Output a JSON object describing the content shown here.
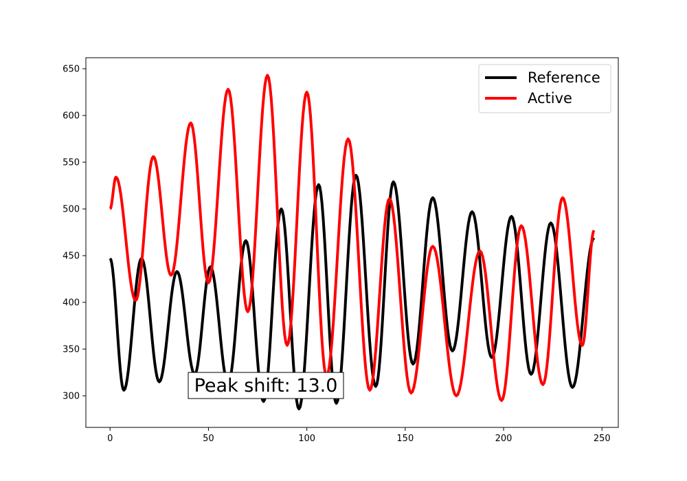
{
  "chart_data": {
    "type": "line",
    "xlim": [
      -12.3,
      258.3
    ],
    "ylim": [
      266.2,
      661.8
    ],
    "xticks": [
      0,
      50,
      100,
      150,
      200,
      250
    ],
    "yticks": [
      300,
      350,
      400,
      450,
      500,
      550,
      600,
      650
    ],
    "grid": false,
    "legend_position": "top-right",
    "annotation": "Peak shift: 13.0",
    "series": [
      {
        "name": "Reference",
        "color": "#000000",
        "points": [
          [
            0,
            447
          ],
          [
            7,
            306
          ],
          [
            16,
            447
          ],
          [
            25,
            315
          ],
          [
            34,
            433
          ],
          [
            43,
            323
          ],
          [
            51,
            438
          ],
          [
            60,
            313
          ],
          [
            69,
            466
          ],
          [
            78,
            294
          ],
          [
            87,
            500
          ],
          [
            96,
            286
          ],
          [
            106,
            526
          ],
          [
            115,
            292
          ],
          [
            125,
            536
          ],
          [
            135,
            310
          ],
          [
            144,
            529
          ],
          [
            154,
            334
          ],
          [
            164,
            512
          ],
          [
            174,
            348
          ],
          [
            184,
            497
          ],
          [
            194,
            341
          ],
          [
            204,
            492
          ],
          [
            214,
            323
          ],
          [
            224,
            485
          ],
          [
            235,
            309
          ],
          [
            246,
            469
          ]
        ]
      },
      {
        "name": "Active",
        "color": "#ff0000",
        "points": [
          [
            0,
            500
          ],
          [
            3,
            534
          ],
          [
            13,
            402
          ],
          [
            22,
            556
          ],
          [
            31,
            429
          ],
          [
            41,
            592
          ],
          [
            50,
            421
          ],
          [
            60,
            628
          ],
          [
            70,
            390
          ],
          [
            80,
            643
          ],
          [
            90,
            354
          ],
          [
            100,
            625
          ],
          [
            110,
            321
          ],
          [
            121,
            575
          ],
          [
            132,
            306
          ],
          [
            142,
            511
          ],
          [
            153,
            303
          ],
          [
            164,
            460
          ],
          [
            176,
            300
          ],
          [
            188,
            455
          ],
          [
            199,
            295
          ],
          [
            209,
            482
          ],
          [
            220,
            312
          ],
          [
            230,
            512
          ],
          [
            240,
            354
          ],
          [
            246,
            477
          ]
        ]
      }
    ]
  }
}
